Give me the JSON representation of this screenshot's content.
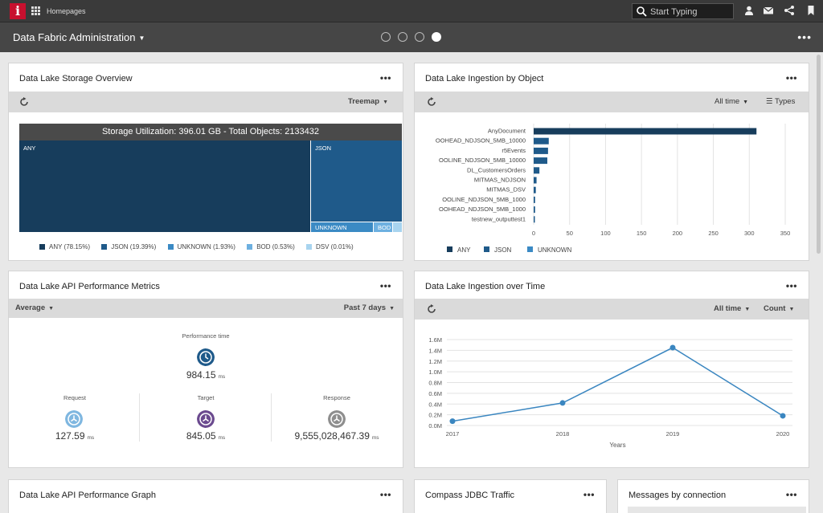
{
  "topbar": {
    "logo": "i",
    "homepages": "Homepages",
    "search_placeholder": "Start Typing"
  },
  "subbar": {
    "title": "Data Fabric Administration",
    "dots": [
      false,
      false,
      false,
      true
    ]
  },
  "storage": {
    "title": "Data Lake Storage Overview",
    "view": "Treemap",
    "header": "Storage Utilization: 396.01 GB - Total Objects: 2133432",
    "boxes": [
      "ANY",
      "JSON",
      "UNKNOWN",
      "BOD"
    ],
    "legend": [
      {
        "label": "ANY (78.15%)",
        "color": "#173d5c"
      },
      {
        "label": "JSON (19.39%)",
        "color": "#1f5a8a"
      },
      {
        "label": "UNKNOWN (1.93%)",
        "color": "#3b8ac4"
      },
      {
        "label": "BOD (0.53%)",
        "color": "#6db0e0"
      },
      {
        "label": "DSV (0.01%)",
        "color": "#a8d4ef"
      }
    ]
  },
  "ingestion_object": {
    "title": "Data Lake Ingestion by Object",
    "time_filter": "All time",
    "types_label": "Types"
  },
  "api_metrics": {
    "title": "Data Lake API Performance Metrics",
    "aggregate": "Average",
    "period": "Past 7 days",
    "performance_label": "Performance time",
    "performance_value": "984.15",
    "unit": "ms",
    "request_label": "Request",
    "request_value": "127.59",
    "target_label": "Target",
    "target_value": "845.05",
    "response_label": "Response",
    "response_value": "9,555,028,467.39"
  },
  "ingestion_time": {
    "title": "Data Lake Ingestion over Time",
    "time_filter": "All time",
    "measure": "Count"
  },
  "bottom": {
    "perf_graph_title": "Data Lake API Performance Graph",
    "jdbc_title": "Compass JDBC Traffic",
    "messages_title": "Messages by connection"
  },
  "colors": {
    "any": "#173d5c",
    "json": "#1f5a8a",
    "unknown": "#3b8ac4",
    "line": "#3a86c0"
  },
  "chart_data": [
    {
      "type": "bar",
      "orientation": "horizontal",
      "categories": [
        "AnyDocument",
        "OOHEAD_NDJSON_5MB_10000",
        "r5Events",
        "OOLINE_NDJSON_5MB_10000",
        "DL_CustomersOrders",
        "MITMAS_NDJSON",
        "MITMAS_DSV",
        "OOLINE_NDJSON_5MB_1000",
        "OOHEAD_NDJSON_5MB_1000",
        "testnew_outputtest1"
      ],
      "values": [
        310,
        21,
        20,
        19,
        8,
        4,
        3,
        2,
        2,
        1
      ],
      "xlim": [
        0,
        350
      ],
      "xticks": [
        0,
        50,
        100,
        150,
        200,
        250,
        300,
        350
      ],
      "legend": [
        "ANY",
        "JSON",
        "UNKNOWN"
      ],
      "grid": true
    },
    {
      "type": "line",
      "x": [
        "2017",
        "2018",
        "2019",
        "2020"
      ],
      "values": [
        0.08,
        0.42,
        1.45,
        0.18
      ],
      "ylim": [
        0,
        1.6
      ],
      "yticks": [
        "0.0M",
        "0.2M",
        "0.4M",
        "0.6M",
        "0.8M",
        "1.0M",
        "1.2M",
        "1.4M",
        "1.6M"
      ],
      "xlabel": "Years",
      "grid": true
    }
  ]
}
